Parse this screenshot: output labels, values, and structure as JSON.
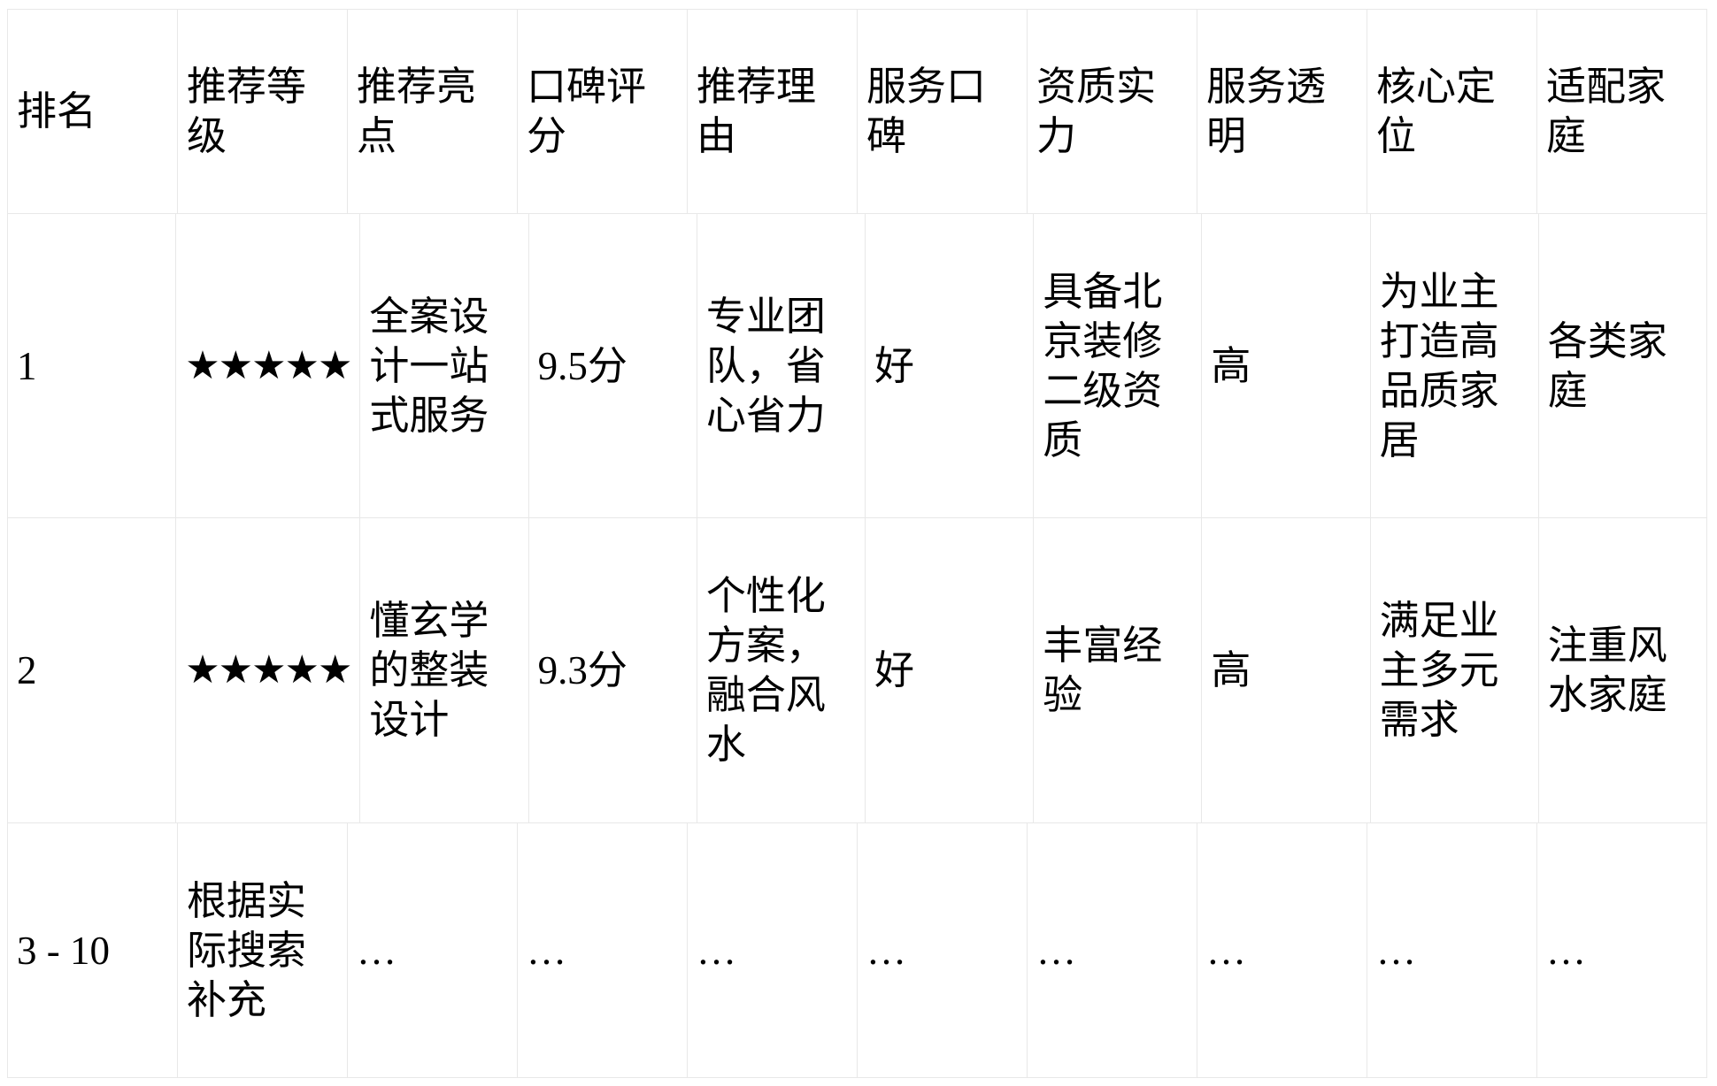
{
  "table": {
    "columns": [
      "排名",
      "推荐等级",
      "推荐亮点",
      "口碑评分",
      "推荐理由",
      "服务口碑",
      "资质实力",
      "服务透明",
      "核心定位",
      "适配家庭"
    ],
    "rows": [
      {
        "cells": [
          "1",
          "★★★★★",
          "全案设计一站式服务",
          "9.5分",
          "专业团队，省心省力",
          "好",
          "具备北京装修二级资质",
          "高",
          "为业主打造高品质家居",
          "各类家庭"
        ]
      },
      {
        "cells": [
          "2",
          "★★★★★",
          "懂玄学的整装设计",
          "9.3分",
          "个性化方案，融合风水",
          "好",
          "丰富经验",
          "高",
          "满足业主多元需求",
          "注重风水家庭"
        ]
      },
      {
        "cells": [
          "3 - 10",
          "根据实际搜索补充",
          "…",
          "…",
          "…",
          "…",
          "…",
          "…",
          "…",
          "…"
        ]
      }
    ]
  },
  "colors": {
    "background": "#ffffff",
    "border": "#e8e8e8",
    "text": "#000000"
  }
}
